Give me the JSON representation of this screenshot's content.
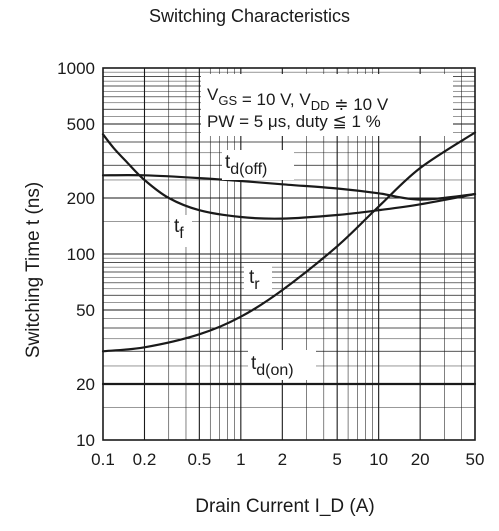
{
  "chart_data": {
    "type": "line",
    "title": "Switching Characteristics",
    "xlabel": "Drain Current  I_D  (A)",
    "ylabel": "Switching Time  t  (ns)",
    "x_scale": "log",
    "y_scale": "log",
    "xlim": [
      0.1,
      50
    ],
    "ylim": [
      10,
      1000
    ],
    "x_ticks": [
      {
        "v": 0.1,
        "label": "0.1"
      },
      {
        "v": 0.2,
        "label": "0.2"
      },
      {
        "v": 0.5,
        "label": "0.5"
      },
      {
        "v": 1,
        "label": "1"
      },
      {
        "v": 2,
        "label": "2"
      },
      {
        "v": 5,
        "label": "5"
      },
      {
        "v": 10,
        "label": "10"
      },
      {
        "v": 20,
        "label": "20"
      },
      {
        "v": 50,
        "label": "50"
      }
    ],
    "y_ticks": [
      {
        "v": 10,
        "label": "10"
      },
      {
        "v": 20,
        "label": "20"
      },
      {
        "v": 50,
        "label": "50"
      },
      {
        "v": 100,
        "label": "100"
      },
      {
        "v": 200,
        "label": "200"
      },
      {
        "v": 500,
        "label": "500"
      },
      {
        "v": 1000,
        "label": "1000"
      }
    ],
    "grid": true,
    "conditions": {
      "line1": "V_GS = 10 V, V_DD ≑ 10 V",
      "line2": "PW = 5 μs, duty ≦ 1 %"
    },
    "series": [
      {
        "name": "t_d(off)",
        "x": [
          0.1,
          0.2,
          0.5,
          1,
          2,
          5,
          10,
          20,
          50
        ],
        "y": [
          265,
          265,
          256,
          247,
          237,
          225,
          212,
          196,
          210
        ]
      },
      {
        "name": "t_f",
        "x": [
          0.1,
          0.12,
          0.15,
          0.2,
          0.3,
          0.5,
          1,
          2,
          5,
          10,
          20,
          50
        ],
        "y": [
          440,
          370,
          310,
          250,
          200,
          172,
          158,
          155,
          162,
          172,
          185,
          210
        ]
      },
      {
        "name": "t_r",
        "x": [
          0.1,
          0.2,
          0.5,
          1,
          2,
          5,
          10,
          20,
          50
        ],
        "y": [
          30,
          31.5,
          37,
          46,
          64,
          110,
          180,
          290,
          450
        ]
      },
      {
        "name": "t_d(on)",
        "x": [
          0.1,
          50
        ],
        "y": [
          20,
          20
        ]
      }
    ]
  }
}
